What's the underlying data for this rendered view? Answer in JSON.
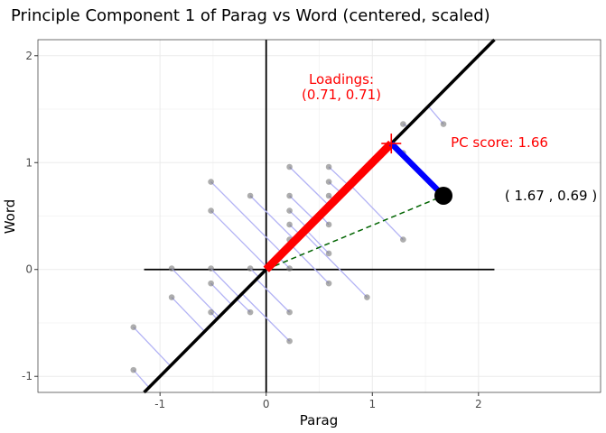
{
  "title": "Principle Component 1 of Parag vs Word (centered, scaled)",
  "colors": {
    "background": "#ffffff",
    "grid": "#ebebeb",
    "panel_border": "#333333",
    "projection_lines": "#b3b3f5",
    "points": "#777777",
    "pc_axis": "#000000",
    "loading_vector": "#ff0000",
    "score_segment": "#0000ff",
    "dashed_line": "#006400",
    "annotation_red": "#ff0000"
  },
  "chart_data": {
    "type": "scatter",
    "title": "Principle Component 1 of Parag vs Word (centered, scaled)",
    "xlabel": "Parag",
    "ylabel": "Word",
    "xlim": [
      -2.15,
      3.15
    ],
    "ylim": [
      -1.15,
      2.15
    ],
    "x_ticks": [
      -1,
      0,
      1,
      2
    ],
    "y_ticks": [
      -1,
      0,
      1,
      2
    ],
    "x_tick_labels": [
      "-1",
      "0",
      "1",
      "2"
    ],
    "y_tick_labels": [
      "-1",
      "0",
      "1",
      "2"
    ],
    "grid": true,
    "points": [
      {
        "x": -1.25,
        "y": -0.54
      },
      {
        "x": -1.25,
        "y": -0.94
      },
      {
        "x": -0.89,
        "y": 0.01
      },
      {
        "x": -0.89,
        "y": -0.26
      },
      {
        "x": -0.52,
        "y": 0.82
      },
      {
        "x": -0.52,
        "y": 0.55
      },
      {
        "x": -0.52,
        "y": 0.01
      },
      {
        "x": -0.52,
        "y": -0.13
      },
      {
        "x": -0.52,
        "y": -0.4
      },
      {
        "x": -0.15,
        "y": 0.69
      },
      {
        "x": -0.15,
        "y": 0.01
      },
      {
        "x": -0.15,
        "y": -0.4
      },
      {
        "x": 0.22,
        "y": 0.96
      },
      {
        "x": 0.22,
        "y": 0.69
      },
      {
        "x": 0.22,
        "y": 0.55
      },
      {
        "x": 0.22,
        "y": 0.42
      },
      {
        "x": 0.22,
        "y": 0.28
      },
      {
        "x": 0.22,
        "y": 0.01
      },
      {
        "x": 0.22,
        "y": -0.4
      },
      {
        "x": 0.22,
        "y": -0.67
      },
      {
        "x": 0.59,
        "y": 0.96
      },
      {
        "x": 0.59,
        "y": 0.82
      },
      {
        "x": 0.59,
        "y": 0.69
      },
      {
        "x": 0.59,
        "y": 0.42
      },
      {
        "x": 0.59,
        "y": 0.15
      },
      {
        "x": 0.59,
        "y": -0.13
      },
      {
        "x": 0.95,
        "y": 0.96
      },
      {
        "x": 0.95,
        "y": -0.26
      },
      {
        "x": 1.29,
        "y": 1.36
      },
      {
        "x": 1.29,
        "y": 1.09
      },
      {
        "x": 1.29,
        "y": 0.28
      },
      {
        "x": 1.67,
        "y": 1.36
      }
    ],
    "loading": [
      0.71,
      0.71
    ],
    "highlight_point": {
      "x": 1.67,
      "y": 0.69
    },
    "pc_score": 1.66,
    "annotations": {
      "loadings_title": "Loadings:",
      "loadings_values": "(0.71, 0.71)",
      "score_label": "PC score: 1.66",
      "point_label": "( 1.67 , 0.69 )"
    }
  }
}
